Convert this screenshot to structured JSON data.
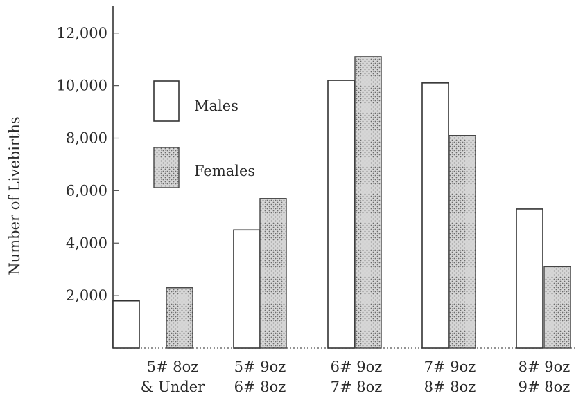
{
  "chart_data": {
    "type": "bar",
    "ylabel": "Number of Livebirths",
    "yticks": [
      "2,000",
      "4,000",
      "6,000",
      "8,000",
      "10,000",
      "12,000"
    ],
    "ylim": [
      0,
      12600
    ],
    "categories": [
      {
        "line1": "5#  8oz",
        "line2": "& Under"
      },
      {
        "line1": "5#  9oz",
        "line2": "6#  8oz"
      },
      {
        "line1": "6#  9oz",
        "line2": "7#  8oz"
      },
      {
        "line1": "7#  9oz",
        "line2": "8#  8oz"
      },
      {
        "line1": "8#  9oz",
        "line2": "9#  8oz"
      }
    ],
    "series": [
      {
        "name": "Males",
        "values": [
          1800,
          4500,
          10200,
          10100,
          5300
        ]
      },
      {
        "name": "Females",
        "values": [
          2300,
          5700,
          11100,
          8100,
          3100
        ]
      }
    ],
    "legend": {
      "position": "top-left"
    },
    "grid": false
  }
}
